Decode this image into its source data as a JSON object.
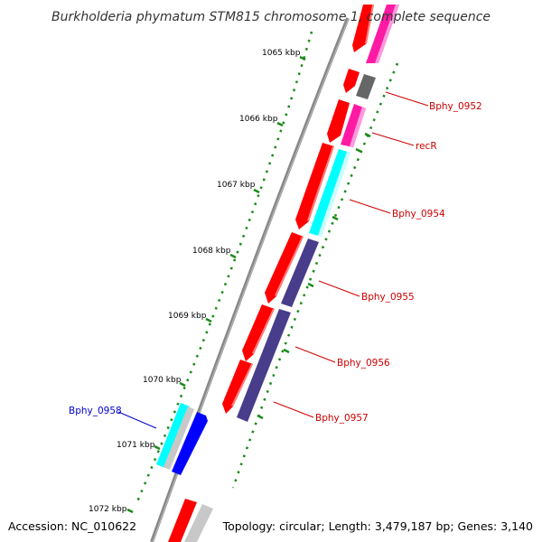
{
  "title": "Burkholderia phymatum STM815 chromosome 1, complete sequence",
  "accession": "Accession: NC_010622",
  "summary": "Topology: circular; Length: 3,479,187 bp; Genes: 3,140",
  "ticks": [
    {
      "label": "1065 kbp"
    },
    {
      "label": "1066 kbp"
    },
    {
      "label": "1067 kbp"
    },
    {
      "label": "1068 kbp"
    },
    {
      "label": "1069 kbp"
    },
    {
      "label": "1070 kbp"
    },
    {
      "label": "1071 kbp"
    },
    {
      "label": "1072 kbp"
    }
  ],
  "gene_labels": [
    {
      "text": "Bphy_0952",
      "color": "#cc0000"
    },
    {
      "text": "recR",
      "color": "#cc0000"
    },
    {
      "text": "Bphy_0954",
      "color": "#cc0000"
    },
    {
      "text": "Bphy_0955",
      "color": "#cc0000"
    },
    {
      "text": "Bphy_0956",
      "color": "#cc0000"
    },
    {
      "text": "Bphy_0957",
      "color": "#cc0000"
    },
    {
      "text": "Bphy_0958",
      "color": "#0000cc"
    }
  ],
  "colors": {
    "cds_red": "#ff0000",
    "magenta": "#ff1aa3",
    "cyan": "#00ffff",
    "navy": "#483d8b",
    "blue": "#0000ff",
    "gray": "#666666",
    "silver": "#c8c8c8",
    "backbone": "#888888",
    "ticks_green": "#1a8a1a"
  }
}
